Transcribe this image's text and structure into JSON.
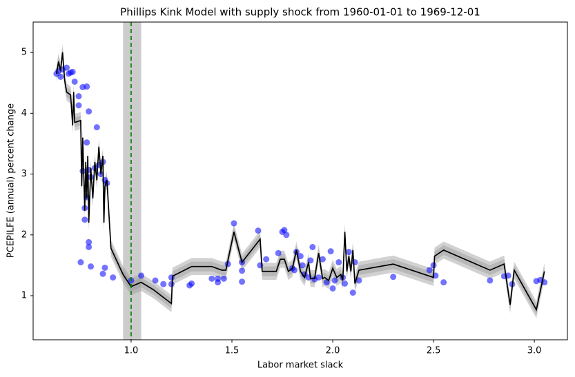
{
  "chart_data": {
    "type": "scatter",
    "title": "Phillips Kink Model with supply shock from 1960-01-01 to 1969-12-01",
    "xlabel": "Labor market slack",
    "ylabel": "PCEPILFE (annual) percent change",
    "xlim": [
      0.514,
      3.164
    ],
    "ylim": [
      0.275,
      5.5
    ],
    "xticks": [
      {
        "value": 1,
        "label": "1.0"
      },
      {
        "value": 1.5,
        "label": "1.5"
      },
      {
        "value": 2,
        "label": "2.0"
      },
      {
        "value": 2.5,
        "label": "2.5"
      },
      {
        "value": 3,
        "label": "3.0"
      }
    ],
    "yticks": [
      1,
      2,
      3,
      4,
      5
    ],
    "scatter": {
      "color": "#0000ff",
      "x": [
        0.63,
        0.64,
        0.65,
        0.66,
        0.68,
        0.69,
        0.7,
        0.71,
        0.72,
        0.74,
        0.74,
        0.76,
        0.78,
        0.79,
        0.83,
        0.78,
        0.79,
        0.76,
        0.8,
        0.82,
        0.84,
        0.85,
        0.86,
        0.87,
        0.88,
        0.77,
        0.77,
        0.78,
        0.79,
        0.79,
        0.75,
        0.8,
        0.86,
        0.87,
        0.91,
        1.0,
        1.05,
        1.12,
        1.16,
        1.2,
        1.2,
        1.29,
        1.3,
        1.4,
        1.43,
        1.43,
        1.46,
        1.48,
        1.51,
        1.55,
        1.55,
        1.55,
        1.63,
        1.64,
        1.67,
        1.73,
        1.75,
        1.76,
        1.77,
        1.8,
        1.81,
        1.82,
        1.84,
        1.85,
        1.86,
        1.88,
        1.89,
        1.9,
        1.91,
        1.93,
        1.95,
        1.97,
        1.99,
        2.0,
        2.01,
        2.03,
        2.05,
        2.06,
        2.08,
        2.1,
        2.11,
        2.13,
        2.3,
        2.48,
        2.5,
        2.51,
        2.55,
        2.78,
        2.85,
        2.87,
        2.89,
        3.01,
        3.03,
        3.05
      ],
      "y": [
        4.65,
        4.7,
        4.6,
        4.72,
        4.75,
        4.65,
        4.67,
        4.68,
        4.52,
        4.28,
        4.13,
        4.43,
        4.44,
        4.03,
        3.77,
        3.52,
        3.07,
        3.05,
        2.95,
        3.1,
        3.15,
        3.0,
        3.2,
        2.9,
        2.85,
        2.44,
        2.25,
        2.62,
        1.88,
        1.8,
        1.55,
        1.48,
        1.36,
        1.46,
        1.3,
        1.25,
        1.33,
        1.25,
        1.19,
        1.3,
        1.19,
        1.17,
        1.2,
        1.28,
        1.22,
        1.28,
        1.28,
        1.52,
        2.19,
        1.55,
        1.41,
        1.23,
        2.07,
        1.5,
        1.6,
        1.7,
        2.05,
        2.08,
        2.0,
        1.45,
        1.42,
        1.72,
        1.65,
        1.5,
        1.35,
        1.3,
        1.58,
        1.8,
        1.27,
        1.3,
        1.6,
        1.22,
        1.73,
        1.12,
        1.25,
        1.55,
        1.3,
        1.2,
        1.72,
        1.05,
        1.55,
        1.25,
        1.31,
        1.42,
        1.5,
        1.33,
        1.22,
        1.25,
        1.32,
        1.33,
        1.19,
        1.24,
        1.26,
        1.22
      ]
    },
    "fit": {
      "color": "#000000",
      "band_color": "#999999",
      "band": [
        0.08,
        0.14
      ],
      "x": [
        0.63,
        0.64,
        0.65,
        0.66,
        0.67,
        0.68,
        0.7,
        0.71,
        0.715,
        0.72,
        0.75,
        0.755,
        0.76,
        0.77,
        0.775,
        0.78,
        0.785,
        0.79,
        0.8,
        0.81,
        0.82,
        0.83,
        0.84,
        0.85,
        0.86,
        0.865,
        0.87,
        0.88,
        0.9,
        0.96,
        1.0,
        1.05,
        1.11,
        1.2,
        1.205,
        1.3,
        1.4,
        1.45,
        1.47,
        1.51,
        1.55,
        1.64,
        1.65,
        1.72,
        1.74,
        1.76,
        1.78,
        1.8,
        1.82,
        1.84,
        1.86,
        1.88,
        1.89,
        1.91,
        1.93,
        1.95,
        1.96,
        1.98,
        2.0,
        2.02,
        2.04,
        2.05,
        2.06,
        2.07,
        2.08,
        2.09,
        2.1,
        2.11,
        2.13,
        2.3,
        2.5,
        2.505,
        2.55,
        2.78,
        2.85,
        2.88,
        2.9,
        3.01,
        3.05
      ],
      "values": [
        4.65,
        4.85,
        4.7,
        5.0,
        4.55,
        4.35,
        4.3,
        3.8,
        4.35,
        3.85,
        3.88,
        2.8,
        3.6,
        2.4,
        3.2,
        2.6,
        3.3,
        2.2,
        3.1,
        2.6,
        3.2,
        2.9,
        3.45,
        3.0,
        3.3,
        2.2,
        2.8,
        2.9,
        1.78,
        1.35,
        1.15,
        1.22,
        1.1,
        0.87,
        1.32,
        1.48,
        1.48,
        1.42,
        1.42,
        2.05,
        1.55,
        1.93,
        1.4,
        1.4,
        1.6,
        1.6,
        1.4,
        1.45,
        1.75,
        1.4,
        1.3,
        1.55,
        1.28,
        1.28,
        1.7,
        1.28,
        1.3,
        1.25,
        1.45,
        1.3,
        1.35,
        1.25,
        2.05,
        1.4,
        1.65,
        1.4,
        1.75,
        1.2,
        1.42,
        1.52,
        1.3,
        1.65,
        1.75,
        1.42,
        1.52,
        0.85,
        1.42,
        0.77,
        1.4
      ]
    },
    "vline": {
      "x": 1,
      "color": "#008000",
      "span": [
        0.96,
        1.05
      ],
      "span_color": "#aaaaaa"
    }
  }
}
